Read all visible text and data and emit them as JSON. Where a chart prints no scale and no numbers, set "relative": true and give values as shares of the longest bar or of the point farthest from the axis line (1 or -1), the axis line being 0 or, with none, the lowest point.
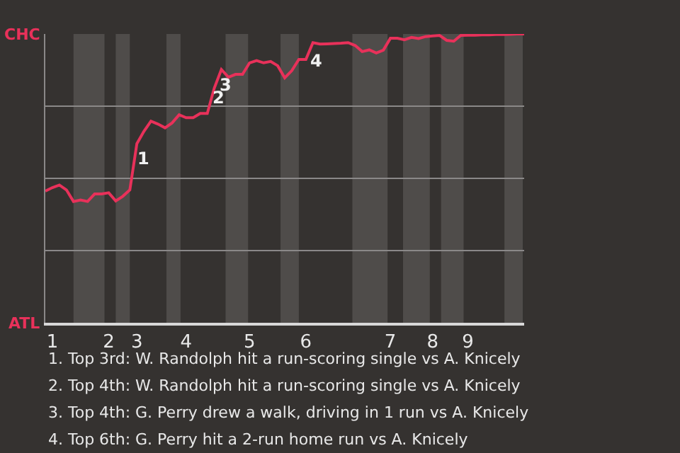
{
  "chart_data": {
    "type": "line",
    "relative": true,
    "categories": [
      null,
      "1",
      null,
      null,
      null,
      null,
      null,
      null,
      null,
      "2",
      null,
      null,
      null,
      "3",
      null,
      null,
      null,
      null,
      null,
      null,
      "4",
      null,
      null,
      null,
      null,
      null,
      null,
      null,
      null,
      "5",
      null,
      null,
      null,
      null,
      null,
      null,
      null,
      "6",
      null,
      null,
      null,
      null,
      null,
      null,
      null,
      null,
      null,
      null,
      null,
      "7",
      null,
      null,
      null,
      null,
      null,
      "8",
      null,
      null,
      null,
      null,
      "9",
      null,
      null,
      null,
      null,
      null,
      null,
      null,
      null
    ],
    "series": [
      {
        "color": "#e8315a",
        "values": [
          0.456,
          0.468,
          0.477,
          0.46,
          0.42,
          0.425,
          0.42,
          0.446,
          0.446,
          0.45,
          0.422,
          0.438,
          0.46,
          0.62,
          0.663,
          0.698,
          0.688,
          0.675,
          0.692,
          0.72,
          0.71,
          0.71,
          0.725,
          0.725,
          0.813,
          0.877,
          0.85,
          0.86,
          0.86,
          0.9,
          0.908,
          0.9,
          0.905,
          0.89,
          0.848,
          0.873,
          0.912,
          0.912,
          0.97,
          0.965,
          0.966,
          0.967,
          0.968,
          0.97,
          0.96,
          0.939,
          0.945,
          0.934,
          0.944,
          0.985,
          0.985,
          0.98,
          0.988,
          0.984,
          0.991,
          0.993,
          0.995,
          0.978,
          0.975,
          0.995,
          0.996,
          0.996,
          0.997,
          0.997,
          0.998,
          0.998,
          0.999,
          1,
          1
        ]
      }
    ],
    "grid": "y",
    "marker": "none",
    "line_style": "solid",
    "annotations": [
      "CHC",
      "ATL",
      "1",
      "2",
      "3",
      "4",
      "1. Top 3rd: W. Randolph hit a run-scoring single vs A. Knicely",
      "2. Top 4th: W. Randolph hit a run-scoring single vs A. Knicely",
      "3. Top 4th: G. Perry drew a walk, driving in 1 run vs A. Knicely",
      "4. Top 6th: G. Perry hit a 2-run home run vs A. Knicely"
    ]
  }
}
